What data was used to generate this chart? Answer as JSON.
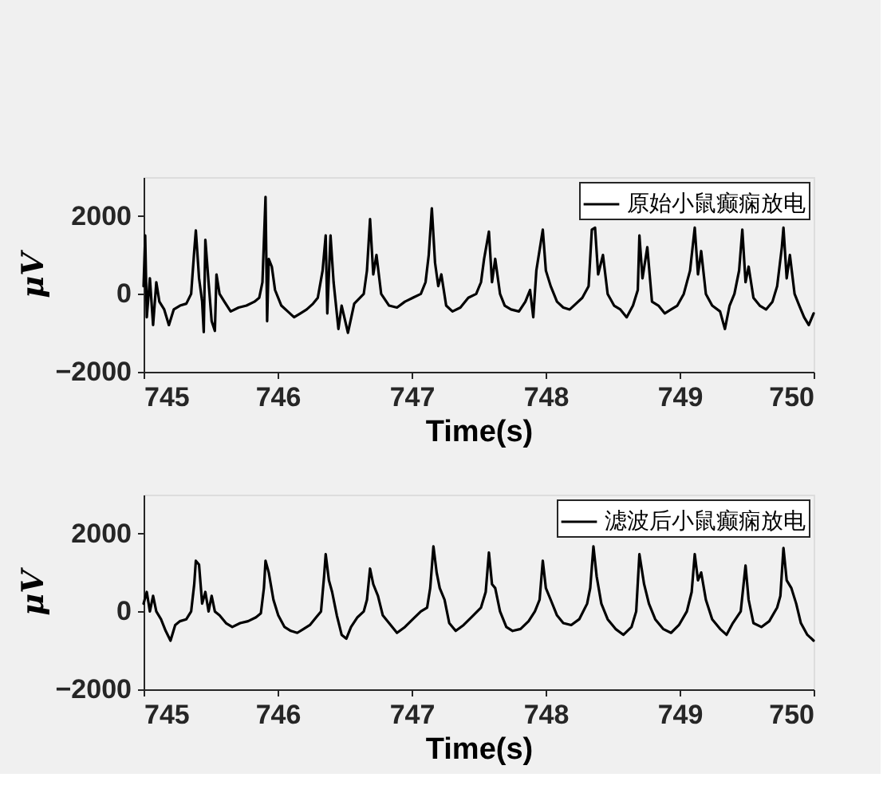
{
  "chart_data": [
    {
      "type": "line",
      "xlabel": "Time(s)",
      "ylabel": "μV",
      "xlim": [
        745,
        750
      ],
      "xticks": [
        745,
        746,
        747,
        748,
        749,
        750
      ],
      "ylim": [
        -2000,
        3000
      ],
      "yticks": [
        -2000,
        0,
        2000
      ],
      "grid": false,
      "legend": "top right",
      "marker": "none",
      "line_style": "solid",
      "x": [
        745.0,
        745.012,
        745.024,
        745.047,
        745.071,
        745.095,
        745.118,
        745.154,
        745.189,
        745.225,
        745.272,
        745.319,
        745.355,
        745.378,
        745.39,
        745.414,
        745.437,
        745.449,
        745.461,
        745.485,
        745.508,
        745.532,
        745.544,
        745.567,
        745.603,
        745.65,
        745.709,
        745.768,
        745.827,
        745.863,
        745.887,
        745.91,
        745.922,
        745.934,
        745.957,
        745.981,
        746.028,
        746.076,
        746.123,
        746.17,
        746.217,
        746.265,
        746.3,
        746.336,
        746.359,
        746.371,
        746.395,
        746.418,
        746.454,
        746.478,
        746.525,
        746.572,
        746.643,
        746.667,
        746.69,
        746.714,
        746.738,
        746.773,
        746.832,
        746.891,
        746.95,
        747.009,
        747.069,
        747.104,
        747.128,
        747.151,
        747.175,
        747.199,
        747.222,
        747.258,
        747.305,
        747.364,
        747.423,
        747.482,
        747.518,
        747.541,
        747.577,
        747.6,
        747.624,
        747.66,
        747.695,
        747.742,
        747.801,
        747.849,
        747.884,
        747.908,
        747.931,
        747.979,
        748.002,
        748.038,
        748.085,
        748.132,
        748.18,
        748.227,
        748.274,
        748.321,
        748.345,
        748.369,
        748.392,
        748.428,
        748.463,
        748.511,
        748.558,
        748.605,
        748.652,
        748.688,
        748.7,
        748.723,
        748.759,
        748.794,
        748.842,
        748.889,
        748.936,
        748.983,
        749.031,
        749.078,
        749.113,
        749.137,
        749.161,
        749.196,
        749.243,
        749.302,
        749.338,
        749.373,
        749.409,
        749.444,
        749.468,
        749.492,
        749.515,
        749.551,
        749.598,
        749.645,
        749.693,
        749.728,
        749.763,
        749.775,
        749.799,
        749.823,
        749.858,
        749.893,
        749.929,
        749.964,
        750.0
      ],
      "series": [
        {
          "name": "原始小鼠癫痫放电",
          "color": "#000000",
          "values": [
            200,
            1500,
            -600,
            400,
            -800,
            300,
            -200,
            -400,
            -800,
            -400,
            -300,
            -250,
            0,
            1100,
            1630,
            400,
            -200,
            -980,
            1390,
            300,
            -700,
            -950,
            500,
            0,
            -200,
            -450,
            -350,
            -300,
            -200,
            -100,
            300,
            2490,
            -700,
            900,
            700,
            100,
            -300,
            -450,
            -600,
            -500,
            -400,
            -250,
            -100,
            600,
            1500,
            -500,
            1500,
            300,
            -900,
            -300,
            -1000,
            -250,
            0,
            600,
            1920,
            500,
            1000,
            0,
            -300,
            -350,
            -200,
            -100,
            0,
            300,
            1000,
            2200,
            800,
            200,
            500,
            -300,
            -450,
            -350,
            -100,
            0,
            300,
            900,
            1600,
            300,
            900,
            0,
            -300,
            -400,
            -450,
            -200,
            100,
            -600,
            600,
            1650,
            600,
            200,
            -200,
            -350,
            -400,
            -250,
            -100,
            200,
            1650,
            1700,
            500,
            1000,
            0,
            -300,
            -400,
            -600,
            -300,
            100,
            1500,
            400,
            1200,
            -200,
            -300,
            -500,
            -400,
            -300,
            0,
            600,
            1700,
            500,
            1100,
            0,
            -300,
            -450,
            -900,
            -300,
            0,
            600,
            1650,
            300,
            700,
            -100,
            -300,
            -400,
            -200,
            200,
            1200,
            1700,
            400,
            1000,
            0,
            -300,
            -600,
            -800,
            -500
          ]
        }
      ]
    },
    {
      "type": "line",
      "xlabel": "Time(s)",
      "ylabel": "μV",
      "xlim": [
        745,
        750
      ],
      "xticks": [
        745,
        746,
        747,
        748,
        749,
        750
      ],
      "ylim": [
        -2000,
        3000
      ],
      "yticks": [
        -2000,
        0,
        2000
      ],
      "grid": false,
      "legend": "top right",
      "marker": "none",
      "line_style": "solid",
      "x": [
        745.0,
        745.024,
        745.047,
        745.071,
        745.095,
        745.13,
        745.165,
        745.201,
        745.236,
        745.272,
        745.319,
        745.355,
        745.378,
        745.39,
        745.414,
        745.437,
        745.461,
        745.485,
        745.508,
        745.532,
        745.567,
        745.615,
        745.662,
        745.721,
        745.78,
        745.839,
        745.875,
        745.898,
        745.91,
        745.934,
        745.969,
        746.005,
        746.052,
        746.099,
        746.147,
        746.194,
        746.241,
        746.288,
        746.324,
        746.347,
        746.359,
        746.383,
        746.407,
        746.442,
        746.478,
        746.513,
        746.548,
        746.596,
        746.643,
        746.667,
        746.69,
        746.714,
        746.749,
        746.785,
        746.832,
        746.891,
        746.95,
        747.009,
        747.069,
        747.116,
        747.139,
        747.163,
        747.187,
        747.21,
        747.246,
        747.281,
        747.329,
        747.388,
        747.447,
        747.518,
        747.553,
        747.577,
        747.6,
        747.624,
        747.66,
        747.707,
        747.754,
        747.813,
        747.873,
        747.92,
        747.955,
        747.979,
        748.002,
        748.038,
        748.085,
        748.132,
        748.191,
        748.251,
        748.31,
        748.333,
        748.357,
        748.381,
        748.416,
        748.463,
        748.522,
        748.581,
        748.641,
        748.676,
        748.7,
        748.735,
        748.771,
        748.818,
        748.877,
        748.936,
        748.995,
        749.054,
        749.09,
        749.113,
        749.137,
        749.161,
        749.196,
        749.243,
        749.302,
        749.35,
        749.397,
        749.456,
        749.492,
        749.515,
        749.551,
        749.61,
        749.669,
        749.728,
        749.752,
        749.775,
        749.799,
        749.834,
        749.87,
        749.905,
        749.953,
        750.0
      ],
      "series": [
        {
          "name": "滤波后小鼠癫痫放电",
          "color": "#000000",
          "values": [
            200,
            500,
            0,
            400,
            0,
            -200,
            -500,
            -750,
            -350,
            -250,
            -200,
            0,
            700,
            1300,
            1200,
            200,
            500,
            0,
            400,
            0,
            -100,
            -300,
            -400,
            -300,
            -250,
            -150,
            -50,
            600,
            1300,
            1000,
            300,
            -100,
            -400,
            -500,
            -550,
            -450,
            -350,
            -150,
            0,
            900,
            1470,
            800,
            500,
            -100,
            -600,
            -700,
            -400,
            -150,
            0,
            300,
            1100,
            700,
            400,
            -100,
            -300,
            -550,
            -400,
            -200,
            0,
            100,
            600,
            1670,
            1000,
            600,
            300,
            -300,
            -500,
            -350,
            -150,
            100,
            500,
            1510,
            700,
            600,
            0,
            -400,
            -500,
            -450,
            -250,
            0,
            300,
            1300,
            600,
            300,
            -100,
            -300,
            -350,
            -200,
            200,
            600,
            1670,
            900,
            200,
            -200,
            -450,
            -600,
            -400,
            0,
            1470,
            700,
            200,
            -200,
            -450,
            -550,
            -350,
            0,
            500,
            1470,
            800,
            1000,
            300,
            -200,
            -450,
            -600,
            -300,
            0,
            1180,
            300,
            -300,
            -400,
            -250,
            100,
            400,
            1630,
            800,
            600,
            200,
            -300,
            -600,
            -750
          ]
        }
      ]
    }
  ]
}
